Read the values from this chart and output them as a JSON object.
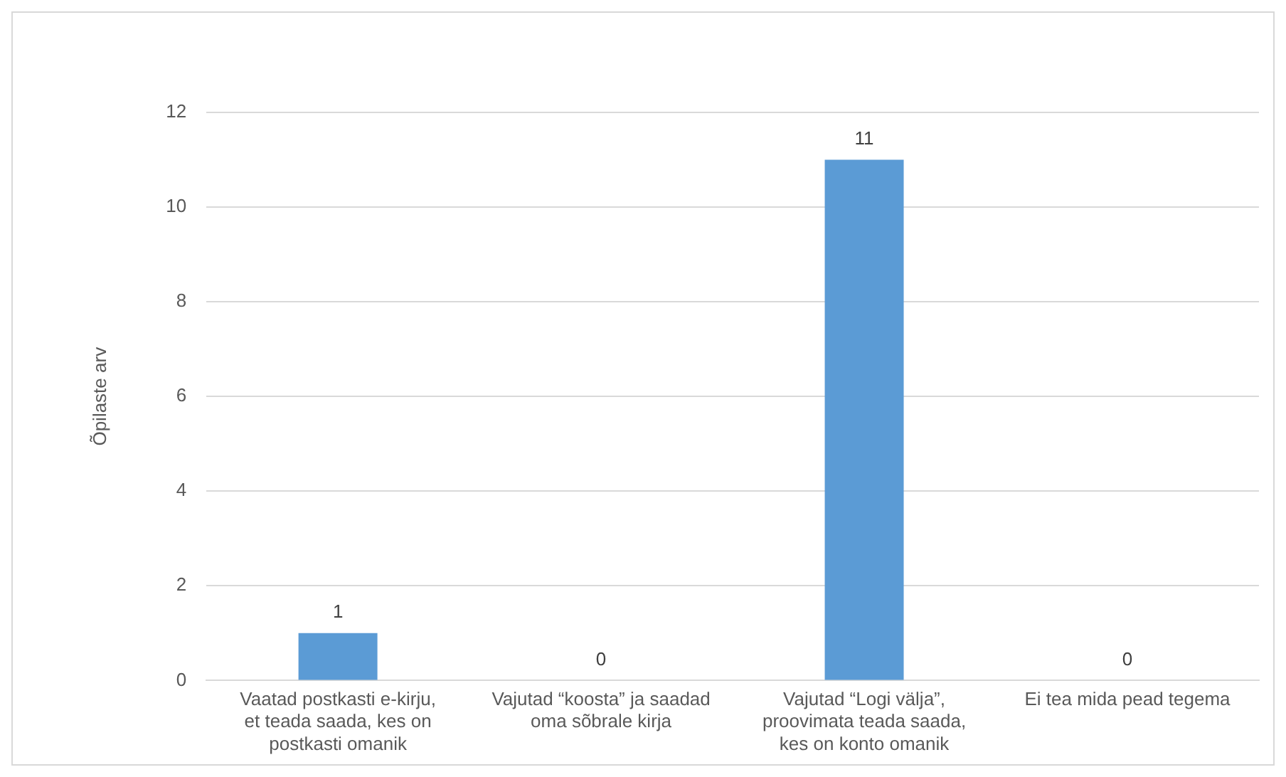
{
  "chart_data": {
    "type": "bar",
    "ylabel": "Õpilaste arv",
    "categories": [
      "Vaatad postkasti e-kirju, et teada saada, kes on postkasti omanik",
      "Vajutad “koosta” ja saadad oma sõbrale kirja",
      "Vajutad “Logi välja”, proovimata teada saada, kes on konto omanik",
      "Ei tea mida pead tegema"
    ],
    "values": [
      1,
      0,
      11,
      0
    ],
    "color": "#5b9bd5",
    "ylim": [
      0,
      12
    ],
    "yticks": [
      0,
      2,
      4,
      6,
      8,
      10,
      12
    ],
    "grid": "y",
    "data_labels": true,
    "legend": false
  }
}
